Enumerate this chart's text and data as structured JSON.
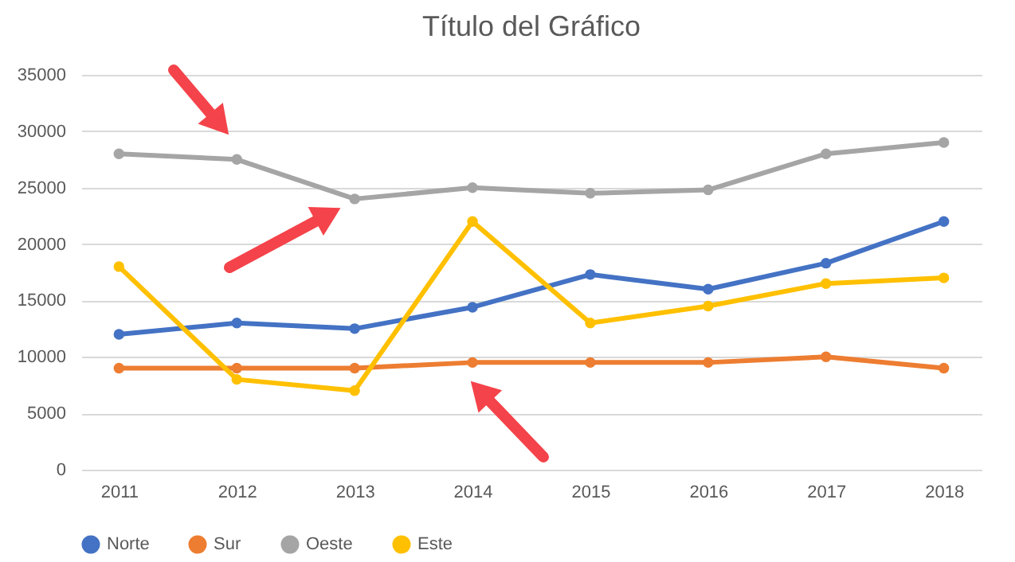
{
  "chart_data": {
    "type": "line",
    "title": "Título del Gráfico",
    "categories": [
      "2011",
      "2012",
      "2013",
      "2014",
      "2015",
      "2016",
      "2017",
      "2018"
    ],
    "series": [
      {
        "name": "Norte",
        "color": "#4472c4",
        "values": [
          12000,
          13000,
          12500,
          14400,
          17300,
          16000,
          18300,
          22000
        ]
      },
      {
        "name": "Sur",
        "color": "#ed7d31",
        "values": [
          9000,
          9000,
          9000,
          9500,
          9500,
          9500,
          10000,
          9000
        ]
      },
      {
        "name": "Oeste",
        "color": "#a5a5a5",
        "values": [
          28000,
          27500,
          24000,
          25000,
          24500,
          24800,
          28000,
          29000
        ]
      },
      {
        "name": "Este",
        "color": "#ffc000",
        "values": [
          18000,
          8000,
          7000,
          22000,
          13000,
          14500,
          16500,
          17000
        ]
      }
    ],
    "ylim": [
      0,
      35000
    ],
    "yticks": [
      0,
      5000,
      10000,
      15000,
      20000,
      25000,
      30000,
      35000
    ],
    "grid": "y",
    "legend": "bottom",
    "marker": "circle",
    "line_style": "solid"
  }
}
